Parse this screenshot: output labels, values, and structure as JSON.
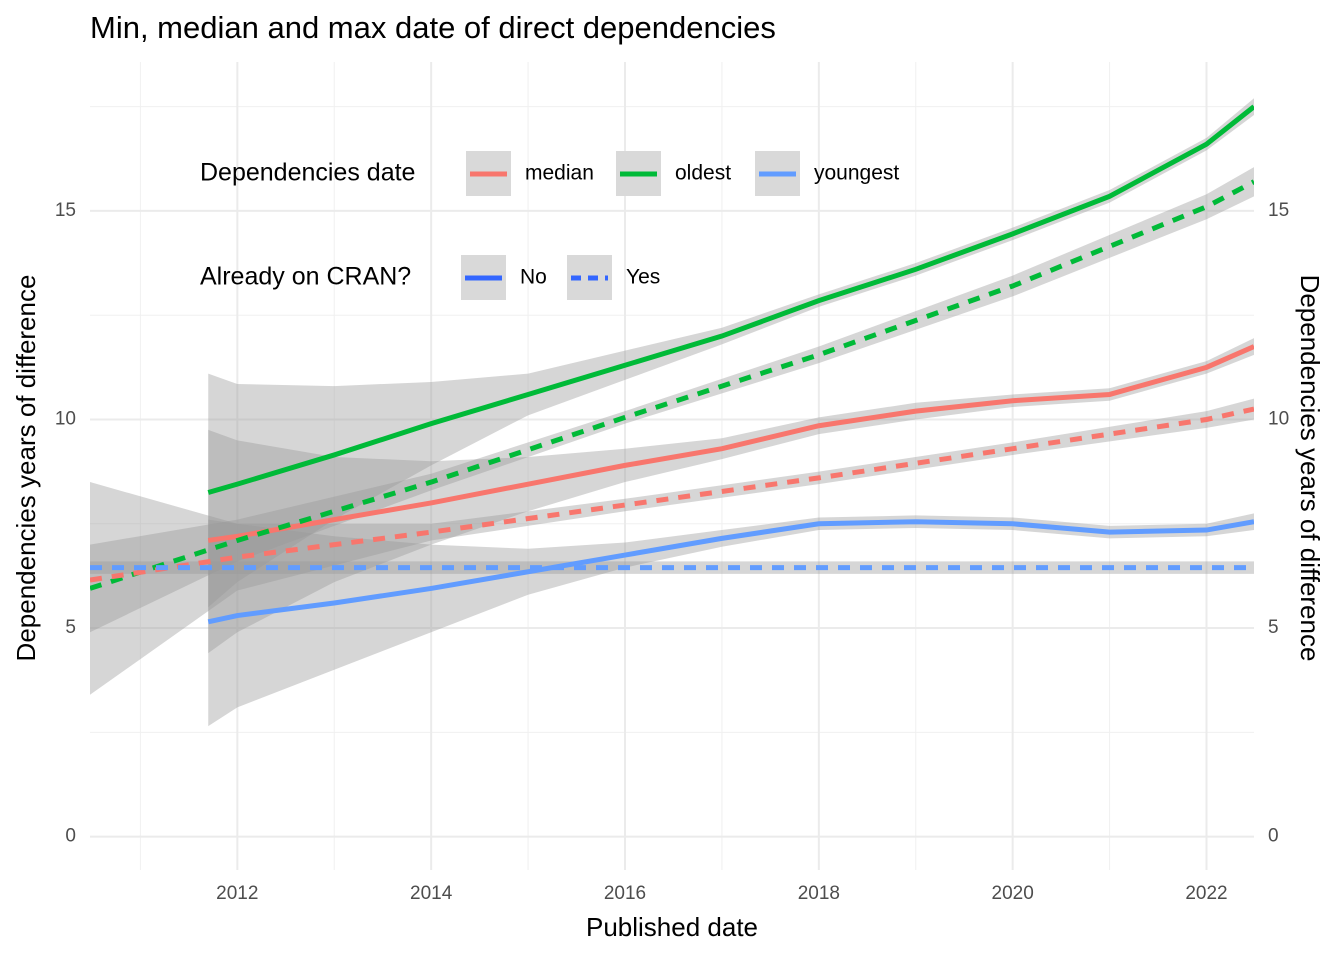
{
  "chart_data": {
    "type": "line",
    "title": "Min, median and max date of direct dependencies",
    "xlabel": "Published date",
    "ylabel": "Dependencies years of difference",
    "y2label": "Dependencies years of difference",
    "xlim": [
      2010.48,
      2022.49
    ],
    "ylim": [
      -0.8,
      18.57
    ],
    "y2lim": [
      -0.8,
      18.57
    ],
    "xticks": [
      2012,
      2014,
      2016,
      2018,
      2020,
      2022
    ],
    "yticks": [
      0,
      5,
      10,
      15
    ],
    "y2ticks": [
      0,
      5,
      10,
      15
    ],
    "minor_xticks": [
      2011,
      2013,
      2015,
      2017,
      2019,
      2021
    ],
    "minor_yticks": [
      2.5,
      7.5,
      12.5,
      17.5
    ],
    "grid": true,
    "band_color": "#999999",
    "legends": [
      {
        "title": "Dependencies date",
        "items": [
          {
            "name": "median",
            "color": "#F8766D",
            "dash": "solid"
          },
          {
            "name": "oldest",
            "color": "#00BA38",
            "dash": "solid"
          },
          {
            "name": "youngest",
            "color": "#619CFF",
            "dash": "solid"
          }
        ]
      },
      {
        "title": "Already on CRAN?",
        "items": [
          {
            "name": "No",
            "color": "#3366FF",
            "dash": "solid"
          },
          {
            "name": "Yes",
            "color": "#3366FF",
            "dash": "dashed"
          }
        ]
      }
    ],
    "series": [
      {
        "color": "#00BA38",
        "dash": "solid",
        "x": [
          2011.7,
          2012,
          2013,
          2014,
          2015,
          2016,
          2017,
          2018,
          2019,
          2020,
          2021,
          2022,
          2022.49
        ],
        "values": [
          8.25,
          8.45,
          9.15,
          9.9,
          10.6,
          11.3,
          12.0,
          12.85,
          13.6,
          14.45,
          15.35,
          16.6,
          17.5
        ],
        "lower": [
          5.5,
          6.1,
          7.6,
          8.9,
          10.1,
          10.95,
          11.8,
          12.7,
          13.45,
          14.3,
          15.2,
          16.45,
          17.3
        ],
        "upper": [
          11.1,
          10.85,
          10.8,
          10.9,
          11.1,
          11.65,
          12.2,
          13.0,
          13.75,
          14.6,
          15.5,
          16.75,
          17.7
        ]
      },
      {
        "color": "#F8766D",
        "dash": "solid",
        "x": [
          2011.7,
          2012,
          2013,
          2014,
          2015,
          2016,
          2017,
          2018,
          2019,
          2020,
          2021,
          2022,
          2022.49
        ],
        "values": [
          7.1,
          7.2,
          7.6,
          8.0,
          8.45,
          8.9,
          9.3,
          9.85,
          10.2,
          10.45,
          10.6,
          11.25,
          11.75
        ],
        "lower": [
          4.4,
          4.9,
          6.1,
          7.0,
          7.8,
          8.5,
          9.05,
          9.65,
          10.0,
          10.3,
          10.45,
          11.1,
          11.55
        ],
        "upper": [
          9.75,
          9.5,
          9.1,
          9.0,
          9.1,
          9.3,
          9.55,
          10.05,
          10.4,
          10.6,
          10.75,
          11.4,
          11.95
        ]
      },
      {
        "color": "#619CFF",
        "dash": "solid",
        "x": [
          2011.7,
          2012,
          2013,
          2014,
          2015,
          2016,
          2017,
          2018,
          2019,
          2020,
          2021,
          2022,
          2022.49
        ],
        "values": [
          5.15,
          5.3,
          5.6,
          5.95,
          6.35,
          6.75,
          7.15,
          7.5,
          7.55,
          7.5,
          7.3,
          7.35,
          7.55
        ],
        "lower": [
          2.65,
          3.1,
          4.0,
          4.9,
          5.8,
          6.45,
          6.95,
          7.35,
          7.4,
          7.35,
          7.15,
          7.2,
          7.35
        ],
        "upper": [
          7.6,
          7.5,
          7.2,
          7.0,
          6.9,
          7.05,
          7.35,
          7.65,
          7.7,
          7.65,
          7.45,
          7.5,
          7.75
        ]
      },
      {
        "color": "#00BA38",
        "dash": "dashed",
        "x": [
          2010.48,
          2012,
          2014,
          2016,
          2018,
          2020,
          2022,
          2022.49
        ],
        "values": [
          5.95,
          7.1,
          8.5,
          10.05,
          11.55,
          13.2,
          15.1,
          15.7
        ],
        "lower": [
          4.9,
          6.6,
          8.3,
          9.9,
          11.35,
          12.95,
          14.8,
          15.35
        ],
        "upper": [
          7.0,
          7.6,
          8.7,
          10.2,
          11.75,
          13.45,
          15.4,
          16.05
        ]
      },
      {
        "color": "#F8766D",
        "dash": "dashed",
        "x": [
          2010.48,
          2012,
          2014,
          2016,
          2018,
          2020,
          2022,
          2022.49
        ],
        "values": [
          6.15,
          6.7,
          7.3,
          7.95,
          8.6,
          9.3,
          10.0,
          10.25
        ],
        "lower": [
          3.4,
          5.9,
          7.1,
          7.8,
          8.45,
          9.15,
          9.8,
          10.0
        ],
        "upper": [
          8.5,
          7.5,
          7.5,
          8.1,
          8.75,
          9.45,
          10.2,
          10.5
        ]
      },
      {
        "color": "#619CFF",
        "dash": "dashed",
        "x": [
          2010.48,
          2012,
          2014,
          2016,
          2018,
          2020,
          2022,
          2022.49
        ],
        "values": [
          6.45,
          6.45,
          6.45,
          6.45,
          6.45,
          6.45,
          6.45,
          6.45
        ],
        "lower": [
          6.3,
          6.3,
          6.3,
          6.3,
          6.3,
          6.3,
          6.3,
          6.3
        ],
        "upper": [
          6.6,
          6.6,
          6.6,
          6.6,
          6.6,
          6.6,
          6.6,
          6.6
        ]
      }
    ]
  }
}
